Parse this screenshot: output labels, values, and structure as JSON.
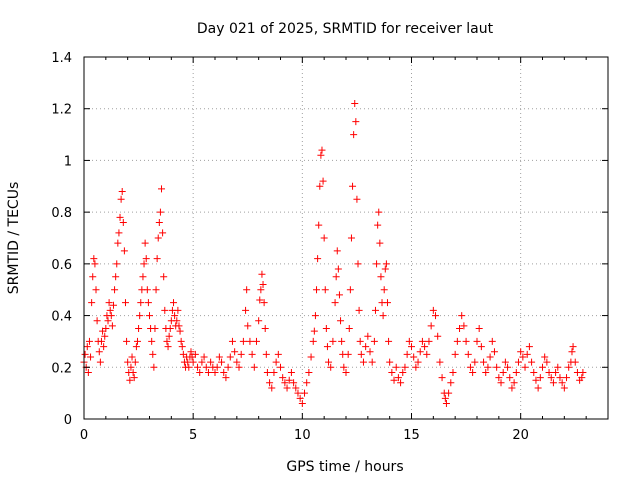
{
  "chart_data": {
    "type": "scatter",
    "title": "Day 021 of 2025, SRMTID for receiver laut",
    "xlabel": "GPS time / hours",
    "ylabel": "SRMTID / TECUs",
    "xlim": [
      0,
      24
    ],
    "ylim": [
      0,
      1.4
    ],
    "xticks": [
      0,
      5,
      10,
      15,
      20
    ],
    "xtick_labels": [
      "0",
      "5",
      "10",
      "15",
      "20"
    ],
    "yticks": [
      0,
      0.2,
      0.4,
      0.6,
      0.8,
      1.0,
      1.2,
      1.4
    ],
    "ytick_labels": [
      "0",
      "0.2",
      "0.4",
      "0.6",
      "0.8",
      "1",
      "1.2",
      "1.4"
    ],
    "grid": true,
    "marker": "plus",
    "color": "#ff0000",
    "series": [
      {
        "name": "SRMTID",
        "points": [
          [
            0.0,
            0.22
          ],
          [
            0.05,
            0.25
          ],
          [
            0.1,
            0.2
          ],
          [
            0.15,
            0.28
          ],
          [
            0.2,
            0.18
          ],
          [
            0.25,
            0.3
          ],
          [
            0.3,
            0.24
          ],
          [
            0.35,
            0.45
          ],
          [
            0.4,
            0.55
          ],
          [
            0.45,
            0.62
          ],
          [
            0.5,
            0.6
          ],
          [
            0.55,
            0.5
          ],
          [
            0.6,
            0.38
          ],
          [
            0.65,
            0.3
          ],
          [
            0.7,
            0.26
          ],
          [
            0.75,
            0.22
          ],
          [
            0.8,
            0.3
          ],
          [
            0.85,
            0.34
          ],
          [
            0.9,
            0.28
          ],
          [
            0.95,
            0.32
          ],
          [
            1.0,
            0.35
          ],
          [
            1.05,
            0.4
          ],
          [
            1.1,
            0.38
          ],
          [
            1.15,
            0.45
          ],
          [
            1.2,
            0.42
          ],
          [
            1.25,
            0.4
          ],
          [
            1.3,
            0.36
          ],
          [
            1.35,
            0.44
          ],
          [
            1.4,
            0.5
          ],
          [
            1.45,
            0.55
          ],
          [
            1.5,
            0.6
          ],
          [
            1.55,
            0.68
          ],
          [
            1.6,
            0.72
          ],
          [
            1.65,
            0.78
          ],
          [
            1.7,
            0.85
          ],
          [
            1.75,
            0.88
          ],
          [
            1.8,
            0.76
          ],
          [
            1.85,
            0.65
          ],
          [
            1.9,
            0.45
          ],
          [
            1.95,
            0.3
          ],
          [
            2.0,
            0.22
          ],
          [
            2.05,
            0.18
          ],
          [
            2.1,
            0.15
          ],
          [
            2.15,
            0.2
          ],
          [
            2.2,
            0.24
          ],
          [
            2.25,
            0.18
          ],
          [
            2.3,
            0.16
          ],
          [
            2.35,
            0.22
          ],
          [
            2.4,
            0.28
          ],
          [
            2.45,
            0.3
          ],
          [
            2.5,
            0.35
          ],
          [
            2.55,
            0.4
          ],
          [
            2.6,
            0.45
          ],
          [
            2.65,
            0.5
          ],
          [
            2.7,
            0.55
          ],
          [
            2.75,
            0.6
          ],
          [
            2.8,
            0.68
          ],
          [
            2.85,
            0.62
          ],
          [
            2.9,
            0.5
          ],
          [
            2.95,
            0.45
          ],
          [
            3.0,
            0.4
          ],
          [
            3.05,
            0.35
          ],
          [
            3.1,
            0.3
          ],
          [
            3.15,
            0.25
          ],
          [
            3.2,
            0.2
          ],
          [
            3.25,
            0.35
          ],
          [
            3.3,
            0.5
          ],
          [
            3.35,
            0.62
          ],
          [
            3.4,
            0.7
          ],
          [
            3.45,
            0.76
          ],
          [
            3.5,
            0.8
          ],
          [
            3.55,
            0.89
          ],
          [
            3.6,
            0.72
          ],
          [
            3.65,
            0.55
          ],
          [
            3.7,
            0.42
          ],
          [
            3.75,
            0.35
          ],
          [
            3.8,
            0.3
          ],
          [
            3.85,
            0.28
          ],
          [
            3.9,
            0.32
          ],
          [
            3.95,
            0.35
          ],
          [
            4.0,
            0.38
          ],
          [
            4.05,
            0.42
          ],
          [
            4.1,
            0.45
          ],
          [
            4.15,
            0.4
          ],
          [
            4.2,
            0.36
          ],
          [
            4.25,
            0.38
          ],
          [
            4.3,
            0.42
          ],
          [
            4.35,
            0.36
          ],
          [
            4.4,
            0.34
          ],
          [
            4.45,
            0.3
          ],
          [
            4.5,
            0.28
          ],
          [
            4.55,
            0.25
          ],
          [
            4.6,
            0.22
          ],
          [
            4.65,
            0.2
          ],
          [
            4.7,
            0.24
          ],
          [
            4.75,
            0.22
          ],
          [
            4.8,
            0.2
          ],
          [
            4.85,
            0.24
          ],
          [
            4.9,
            0.26
          ],
          [
            4.95,
            0.24
          ],
          [
            5.0,
            0.22
          ],
          [
            5.1,
            0.25
          ],
          [
            5.2,
            0.2
          ],
          [
            5.3,
            0.18
          ],
          [
            5.4,
            0.22
          ],
          [
            5.5,
            0.24
          ],
          [
            5.6,
            0.2
          ],
          [
            5.7,
            0.18
          ],
          [
            5.8,
            0.22
          ],
          [
            5.9,
            0.2
          ],
          [
            6.0,
            0.18
          ],
          [
            6.1,
            0.2
          ],
          [
            6.2,
            0.24
          ],
          [
            6.3,
            0.22
          ],
          [
            6.4,
            0.18
          ],
          [
            6.5,
            0.16
          ],
          [
            6.6,
            0.2
          ],
          [
            6.7,
            0.24
          ],
          [
            6.8,
            0.3
          ],
          [
            6.9,
            0.26
          ],
          [
            7.0,
            0.22
          ],
          [
            7.1,
            0.2
          ],
          [
            7.2,
            0.25
          ],
          [
            7.3,
            0.3
          ],
          [
            7.4,
            0.42
          ],
          [
            7.45,
            0.5
          ],
          [
            7.5,
            0.36
          ],
          [
            7.6,
            0.3
          ],
          [
            7.7,
            0.25
          ],
          [
            7.8,
            0.2
          ],
          [
            7.9,
            0.3
          ],
          [
            8.0,
            0.38
          ],
          [
            8.05,
            0.46
          ],
          [
            8.1,
            0.5
          ],
          [
            8.15,
            0.56
          ],
          [
            8.2,
            0.52
          ],
          [
            8.25,
            0.45
          ],
          [
            8.3,
            0.35
          ],
          [
            8.35,
            0.25
          ],
          [
            8.4,
            0.18
          ],
          [
            8.5,
            0.14
          ],
          [
            8.6,
            0.12
          ],
          [
            8.7,
            0.18
          ],
          [
            8.8,
            0.22
          ],
          [
            8.9,
            0.25
          ],
          [
            9.0,
            0.2
          ],
          [
            9.1,
            0.16
          ],
          [
            9.2,
            0.14
          ],
          [
            9.3,
            0.12
          ],
          [
            9.4,
            0.15
          ],
          [
            9.5,
            0.18
          ],
          [
            9.6,
            0.14
          ],
          [
            9.7,
            0.12
          ],
          [
            9.8,
            0.1
          ],
          [
            9.9,
            0.08
          ],
          [
            10.0,
            0.06
          ],
          [
            10.1,
            0.1
          ],
          [
            10.2,
            0.14
          ],
          [
            10.3,
            0.18
          ],
          [
            10.4,
            0.24
          ],
          [
            10.5,
            0.3
          ],
          [
            10.55,
            0.34
          ],
          [
            10.6,
            0.4
          ],
          [
            10.65,
            0.5
          ],
          [
            10.7,
            0.62
          ],
          [
            10.75,
            0.75
          ],
          [
            10.8,
            0.9
          ],
          [
            10.85,
            1.02
          ],
          [
            10.9,
            1.04
          ],
          [
            10.95,
            0.92
          ],
          [
            11.0,
            0.7
          ],
          [
            11.05,
            0.5
          ],
          [
            11.1,
            0.35
          ],
          [
            11.15,
            0.28
          ],
          [
            11.2,
            0.22
          ],
          [
            11.3,
            0.2
          ],
          [
            11.4,
            0.3
          ],
          [
            11.5,
            0.45
          ],
          [
            11.55,
            0.55
          ],
          [
            11.6,
            0.65
          ],
          [
            11.65,
            0.58
          ],
          [
            11.7,
            0.48
          ],
          [
            11.75,
            0.38
          ],
          [
            11.8,
            0.3
          ],
          [
            11.85,
            0.25
          ],
          [
            11.9,
            0.2
          ],
          [
            12.0,
            0.18
          ],
          [
            12.1,
            0.25
          ],
          [
            12.15,
            0.35
          ],
          [
            12.2,
            0.5
          ],
          [
            12.25,
            0.7
          ],
          [
            12.3,
            0.9
          ],
          [
            12.35,
            1.1
          ],
          [
            12.4,
            1.22
          ],
          [
            12.45,
            1.15
          ],
          [
            12.5,
            0.85
          ],
          [
            12.55,
            0.6
          ],
          [
            12.6,
            0.42
          ],
          [
            12.65,
            0.3
          ],
          [
            12.7,
            0.25
          ],
          [
            12.8,
            0.22
          ],
          [
            12.9,
            0.28
          ],
          [
            13.0,
            0.32
          ],
          [
            13.1,
            0.26
          ],
          [
            13.2,
            0.22
          ],
          [
            13.3,
            0.3
          ],
          [
            13.35,
            0.42
          ],
          [
            13.4,
            0.6
          ],
          [
            13.45,
            0.75
          ],
          [
            13.5,
            0.8
          ],
          [
            13.55,
            0.68
          ],
          [
            13.6,
            0.55
          ],
          [
            13.65,
            0.45
          ],
          [
            13.7,
            0.4
          ],
          [
            13.75,
            0.5
          ],
          [
            13.8,
            0.58
          ],
          [
            13.85,
            0.6
          ],
          [
            13.9,
            0.45
          ],
          [
            13.95,
            0.3
          ],
          [
            14.0,
            0.22
          ],
          [
            14.1,
            0.18
          ],
          [
            14.2,
            0.15
          ],
          [
            14.3,
            0.2
          ],
          [
            14.4,
            0.16
          ],
          [
            14.5,
            0.14
          ],
          [
            14.6,
            0.18
          ],
          [
            14.7,
            0.2
          ],
          [
            14.8,
            0.25
          ],
          [
            14.9,
            0.3
          ],
          [
            15.0,
            0.28
          ],
          [
            15.1,
            0.24
          ],
          [
            15.2,
            0.2
          ],
          [
            15.3,
            0.22
          ],
          [
            15.4,
            0.26
          ],
          [
            15.5,
            0.3
          ],
          [
            15.6,
            0.28
          ],
          [
            15.7,
            0.25
          ],
          [
            15.8,
            0.3
          ],
          [
            15.9,
            0.36
          ],
          [
            16.0,
            0.42
          ],
          [
            16.1,
            0.4
          ],
          [
            16.2,
            0.32
          ],
          [
            16.3,
            0.22
          ],
          [
            16.4,
            0.16
          ],
          [
            16.5,
            0.1
          ],
          [
            16.55,
            0.08
          ],
          [
            16.6,
            0.06
          ],
          [
            16.7,
            0.1
          ],
          [
            16.8,
            0.14
          ],
          [
            16.9,
            0.18
          ],
          [
            17.0,
            0.25
          ],
          [
            17.1,
            0.3
          ],
          [
            17.2,
            0.35
          ],
          [
            17.3,
            0.4
          ],
          [
            17.4,
            0.36
          ],
          [
            17.5,
            0.3
          ],
          [
            17.6,
            0.25
          ],
          [
            17.7,
            0.2
          ],
          [
            17.8,
            0.18
          ],
          [
            17.9,
            0.22
          ],
          [
            18.0,
            0.3
          ],
          [
            18.1,
            0.35
          ],
          [
            18.2,
            0.28
          ],
          [
            18.3,
            0.22
          ],
          [
            18.4,
            0.18
          ],
          [
            18.5,
            0.2
          ],
          [
            18.6,
            0.24
          ],
          [
            18.7,
            0.3
          ],
          [
            18.8,
            0.26
          ],
          [
            18.9,
            0.2
          ],
          [
            19.0,
            0.16
          ],
          [
            19.1,
            0.14
          ],
          [
            19.2,
            0.18
          ],
          [
            19.3,
            0.22
          ],
          [
            19.4,
            0.2
          ],
          [
            19.5,
            0.16
          ],
          [
            19.6,
            0.12
          ],
          [
            19.7,
            0.14
          ],
          [
            19.8,
            0.18
          ],
          [
            19.9,
            0.22
          ],
          [
            20.0,
            0.26
          ],
          [
            20.1,
            0.24
          ],
          [
            20.2,
            0.2
          ],
          [
            20.3,
            0.25
          ],
          [
            20.4,
            0.28
          ],
          [
            20.5,
            0.22
          ],
          [
            20.6,
            0.18
          ],
          [
            20.7,
            0.15
          ],
          [
            20.8,
            0.12
          ],
          [
            20.9,
            0.16
          ],
          [
            21.0,
            0.2
          ],
          [
            21.1,
            0.24
          ],
          [
            21.2,
            0.22
          ],
          [
            21.3,
            0.18
          ],
          [
            21.4,
            0.16
          ],
          [
            21.5,
            0.14
          ],
          [
            21.6,
            0.18
          ],
          [
            21.7,
            0.2
          ],
          [
            21.8,
            0.16
          ],
          [
            21.9,
            0.14
          ],
          [
            22.0,
            0.12
          ],
          [
            22.1,
            0.16
          ],
          [
            22.2,
            0.2
          ],
          [
            22.3,
            0.22
          ],
          [
            22.35,
            0.26
          ],
          [
            22.4,
            0.28
          ],
          [
            22.5,
            0.22
          ],
          [
            22.6,
            0.18
          ],
          [
            22.7,
            0.15
          ],
          [
            22.8,
            0.16
          ],
          [
            22.85,
            0.18
          ]
        ]
      }
    ]
  }
}
